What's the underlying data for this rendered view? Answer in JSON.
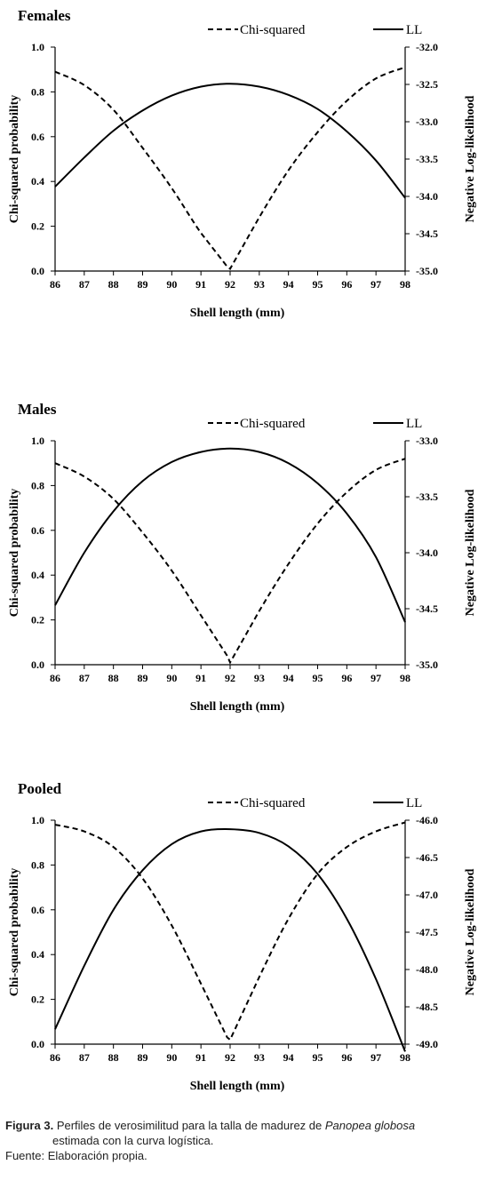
{
  "caption": {
    "label": "Figura 3.",
    "text_before": "Perfiles de verosimilitud para la talla de madurez de",
    "species": "Panopea globosa",
    "text_after": "estimada con la curva logística.",
    "source": "Fuente: Elaboración propia."
  },
  "chart_data": [
    {
      "type": "line",
      "title": "Females",
      "xlabel": "Shell length (mm)",
      "ylabel": "Chi-squared probability",
      "y2label": "Negative Log-likelihood",
      "xlim": [
        86,
        98
      ],
      "ylim": [
        0,
        1
      ],
      "y2lim": [
        -35.0,
        -32.0
      ],
      "x_ticks": [
        "86",
        "87",
        "88",
        "89",
        "90",
        "91",
        "92",
        "93",
        "94",
        "95",
        "96",
        "97",
        "98"
      ],
      "y_ticks": [
        "0.0",
        "0.2",
        "0.4",
        "0.6",
        "0.8",
        "1.0"
      ],
      "y2_ticks": [
        "-35.0",
        "-34.5",
        "-34.0",
        "-33.5",
        "-33.0",
        "-32.5",
        "-32.0"
      ],
      "legend_position": "top",
      "series": [
        {
          "name": "Chi-squared",
          "axis": "left",
          "style": "dashed",
          "x": [
            86,
            87,
            88,
            89,
            90,
            91,
            91.9,
            92,
            93,
            94,
            95,
            96,
            97,
            98
          ],
          "y": [
            0.89,
            0.83,
            0.72,
            0.55,
            0.37,
            0.17,
            0.02,
            0.01,
            0.24,
            0.45,
            0.62,
            0.76,
            0.86,
            0.91
          ]
        },
        {
          "name": "LL",
          "axis": "right",
          "style": "solid",
          "x": [
            86,
            87,
            88,
            89,
            90,
            91,
            92,
            93,
            94,
            95,
            96,
            97,
            98
          ],
          "y": [
            -33.87,
            -33.48,
            -33.12,
            -32.85,
            -32.65,
            -32.53,
            -32.49,
            -32.53,
            -32.64,
            -32.83,
            -33.13,
            -33.52,
            -34.02
          ]
        }
      ]
    },
    {
      "type": "line",
      "title": "Males",
      "xlabel": "Shell length (mm)",
      "ylabel": "Chi-squared probability",
      "y2label": "Negative Log-likelihood",
      "xlim": [
        86,
        98
      ],
      "ylim": [
        0,
        1
      ],
      "y2lim": [
        -35.0,
        -33.0
      ],
      "x_ticks": [
        "86",
        "87",
        "88",
        "89",
        "90",
        "91",
        "92",
        "93",
        "94",
        "95",
        "96",
        "97",
        "98"
      ],
      "y_ticks": [
        "0.0",
        "0.2",
        "0.4",
        "0.6",
        "0.8",
        "1.0"
      ],
      "y2_ticks": [
        "-35.0",
        "-34.5",
        "-34.0",
        "-33.5",
        "-33.0"
      ],
      "legend_position": "top",
      "series": [
        {
          "name": "Chi-squared",
          "axis": "left",
          "style": "dashed",
          "x": [
            86,
            87,
            88,
            89,
            90,
            91,
            91.9,
            92,
            93,
            94,
            95,
            96,
            97,
            98
          ],
          "y": [
            0.9,
            0.84,
            0.74,
            0.59,
            0.42,
            0.22,
            0.04,
            0.01,
            0.24,
            0.45,
            0.63,
            0.77,
            0.87,
            0.92
          ]
        },
        {
          "name": "LL",
          "axis": "right",
          "style": "solid",
          "x": [
            86,
            87,
            88,
            89,
            90,
            91,
            92,
            93,
            94,
            95,
            96,
            97,
            98
          ],
          "y": [
            -34.47,
            -34.0,
            -33.63,
            -33.36,
            -33.19,
            -33.1,
            -33.07,
            -33.1,
            -33.2,
            -33.38,
            -33.65,
            -34.04,
            -34.62
          ]
        }
      ]
    },
    {
      "type": "line",
      "title": "Pooled",
      "xlabel": "Shell length (mm)",
      "ylabel": "Chi-squared probability",
      "y2label": "Negative Log-likelihood",
      "xlim": [
        86,
        98
      ],
      "ylim": [
        0,
        1
      ],
      "y2lim": [
        -49.0,
        -46.0
      ],
      "x_ticks": [
        "86",
        "87",
        "88",
        "89",
        "90",
        "91",
        "92",
        "93",
        "94",
        "95",
        "96",
        "97",
        "98"
      ],
      "y_ticks": [
        "0.0",
        "0.2",
        "0.4",
        "0.6",
        "0.8",
        "1.0"
      ],
      "y2_ticks": [
        "-49.0",
        "-48.5",
        "-48.0",
        "-47.5",
        "-47.0",
        "-46.5",
        "-46.0"
      ],
      "legend_position": "top",
      "series": [
        {
          "name": "Chi-squared",
          "axis": "left",
          "style": "dashed",
          "x": [
            86,
            87,
            88,
            89,
            90,
            91,
            91.9,
            92,
            93,
            94,
            95,
            96,
            97,
            98
          ],
          "y": [
            0.98,
            0.95,
            0.88,
            0.74,
            0.53,
            0.27,
            0.03,
            0.02,
            0.3,
            0.56,
            0.76,
            0.88,
            0.95,
            0.99
          ]
        },
        {
          "name": "LL",
          "axis": "right",
          "style": "solid",
          "x": [
            86,
            87,
            88,
            89,
            90,
            91,
            92,
            93,
            94,
            95,
            96,
            97,
            98
          ],
          "y": [
            -48.8,
            -47.95,
            -47.2,
            -46.67,
            -46.32,
            -46.15,
            -46.12,
            -46.17,
            -46.35,
            -46.72,
            -47.32,
            -48.13,
            -49.1
          ]
        }
      ]
    }
  ]
}
